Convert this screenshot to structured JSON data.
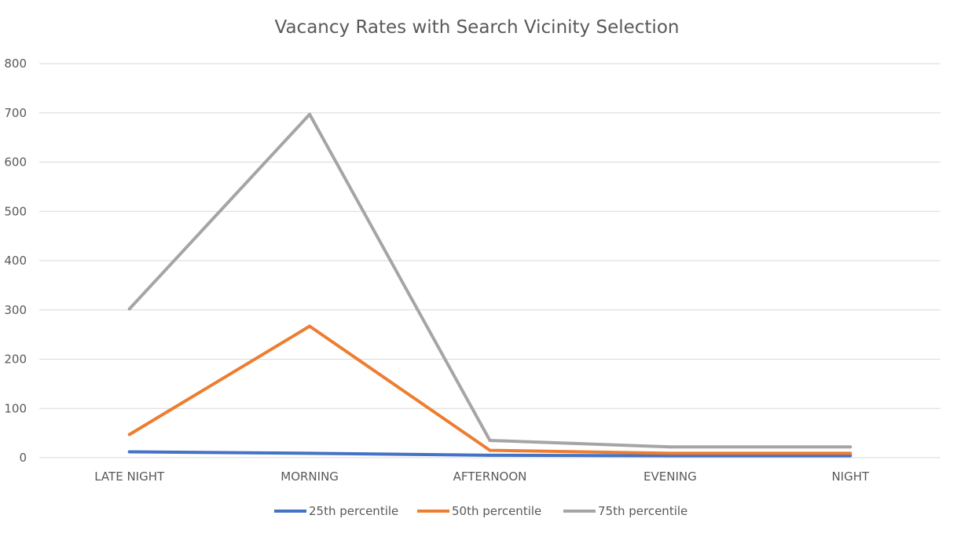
{
  "chart_data": {
    "type": "line",
    "title": "Vacancy Rates with Search Vicinity Selection",
    "xlabel": "",
    "ylabel": "",
    "categories": [
      "LATE NIGHT",
      "MORNING",
      "AFTERNOON",
      "EVENING",
      "NIGHT"
    ],
    "ylim": [
      0,
      800
    ],
    "yticks": [
      0,
      100,
      200,
      300,
      400,
      500,
      600,
      700,
      800
    ],
    "grid": true,
    "legend_position": "bottom",
    "series": [
      {
        "name": "25th percentile",
        "color": "#4472c4",
        "values": [
          12,
          9,
          5,
          4,
          4
        ]
      },
      {
        "name": "50th percentile",
        "color": "#ed7d31",
        "values": [
          47,
          267,
          15,
          9,
          9
        ]
      },
      {
        "name": "75th percentile",
        "color": "#a5a5a5",
        "values": [
          302,
          697,
          35,
          22,
          22
        ]
      }
    ]
  }
}
